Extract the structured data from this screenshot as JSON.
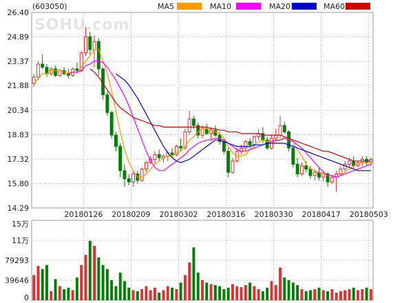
{
  "header": {
    "code": "(603050)"
  },
  "watermark": {
    "text": "SOHU.com"
  },
  "legend": [
    {
      "name": "MA5",
      "color": "#ff9900"
    },
    {
      "name": "MA10",
      "color": "#ff00ff"
    },
    {
      "name": "MA20",
      "color": "#0000cc"
    },
    {
      "name": "MA60",
      "color": "#cc0000"
    }
  ],
  "colors": {
    "up": "#e03030",
    "down": "#008000",
    "grid": "#c8c8c8"
  },
  "chart_data": [
    {
      "type": "candlestick",
      "ylim": [
        14.29,
        26.4
      ],
      "y_ticks": [
        "26.40",
        "24.89",
        "23.37",
        "21.88",
        "20.34",
        "18.83",
        "17.32",
        "15.80",
        "14.29"
      ],
      "x_ticks": [
        {
          "index": 12,
          "label": "20180126"
        },
        {
          "index": 23,
          "label": "20180209"
        },
        {
          "index": 34,
          "label": "20180302"
        },
        {
          "index": 45,
          "label": "20180316"
        },
        {
          "index": 56,
          "label": "20180330"
        },
        {
          "index": 67,
          "label": "20180417"
        },
        {
          "index": 78,
          "label": "20180503"
        }
      ],
      "ohlc": [
        [
          22.0,
          22.6,
          21.8,
          22.4
        ],
        [
          22.4,
          23.4,
          22.2,
          23.2
        ],
        [
          23.2,
          23.8,
          22.9,
          23.0
        ],
        [
          23.0,
          23.2,
          22.4,
          22.6
        ],
        [
          22.6,
          23.0,
          22.5,
          22.9
        ],
        [
          22.9,
          23.1,
          22.4,
          22.5
        ],
        [
          22.5,
          22.9,
          22.4,
          22.8
        ],
        [
          22.8,
          23.0,
          22.5,
          22.6
        ],
        [
          22.6,
          22.9,
          22.3,
          22.5
        ],
        [
          22.5,
          23.0,
          22.4,
          22.9
        ],
        [
          22.9,
          23.3,
          22.6,
          22.8
        ],
        [
          22.8,
          24.0,
          22.7,
          23.9
        ],
        [
          23.9,
          25.5,
          23.7,
          24.9
        ],
        [
          24.9,
          25.2,
          23.8,
          24.1
        ],
        [
          24.1,
          25.0,
          23.0,
          24.6
        ],
        [
          24.6,
          24.8,
          22.5,
          22.9
        ],
        [
          22.9,
          23.0,
          21.0,
          21.3
        ],
        [
          21.3,
          21.5,
          20.0,
          20.2
        ],
        [
          20.2,
          20.3,
          18.6,
          18.8
        ],
        [
          18.8,
          19.0,
          17.8,
          18.1
        ],
        [
          18.1,
          18.3,
          16.2,
          16.6
        ],
        [
          16.6,
          17.0,
          15.6,
          16.1
        ],
        [
          16.1,
          16.4,
          15.7,
          15.9
        ],
        [
          15.9,
          16.6,
          15.6,
          16.4
        ],
        [
          16.4,
          16.6,
          15.8,
          16.0
        ],
        [
          16.0,
          16.8,
          15.9,
          16.7
        ],
        [
          16.7,
          17.2,
          16.5,
          17.1
        ],
        [
          17.1,
          17.5,
          17.0,
          17.3
        ],
        [
          17.3,
          17.8,
          17.0,
          17.6
        ],
        [
          17.6,
          17.9,
          17.2,
          17.4
        ],
        [
          17.4,
          17.6,
          17.1,
          17.5
        ],
        [
          17.5,
          17.8,
          17.2,
          17.7
        ],
        [
          17.7,
          18.0,
          17.4,
          17.6
        ],
        [
          17.6,
          18.2,
          17.5,
          18.1
        ],
        [
          18.1,
          18.6,
          17.8,
          18.0
        ],
        [
          18.0,
          19.2,
          17.9,
          19.0
        ],
        [
          19.0,
          20.3,
          18.8,
          19.8
        ],
        [
          19.8,
          20.0,
          19.2,
          19.4
        ],
        [
          19.4,
          19.6,
          18.6,
          18.8
        ],
        [
          18.8,
          19.4,
          18.6,
          19.2
        ],
        [
          19.2,
          19.5,
          18.8,
          18.9
        ],
        [
          18.9,
          19.3,
          18.5,
          19.1
        ],
        [
          19.1,
          19.4,
          18.7,
          18.8
        ],
        [
          18.8,
          19.0,
          18.2,
          18.4
        ],
        [
          18.4,
          18.6,
          17.6,
          17.8
        ],
        [
          17.8,
          18.0,
          16.2,
          16.5
        ],
        [
          16.5,
          17.4,
          16.4,
          17.2
        ],
        [
          17.2,
          18.0,
          17.1,
          17.8
        ],
        [
          17.8,
          18.2,
          17.6,
          18.0
        ],
        [
          18.0,
          18.5,
          17.8,
          18.4
        ],
        [
          18.4,
          18.6,
          18.0,
          18.2
        ],
        [
          18.2,
          18.8,
          18.0,
          18.7
        ],
        [
          18.7,
          19.2,
          18.5,
          18.9
        ],
        [
          18.9,
          19.3,
          18.3,
          18.5
        ],
        [
          18.5,
          18.7,
          17.9,
          18.0
        ],
        [
          18.0,
          18.8,
          17.9,
          18.6
        ],
        [
          18.6,
          19.2,
          18.4,
          18.8
        ],
        [
          18.8,
          20.0,
          18.6,
          19.4
        ],
        [
          19.4,
          19.6,
          18.9,
          19.0
        ],
        [
          19.0,
          19.1,
          17.8,
          18.0
        ],
        [
          18.0,
          18.2,
          16.8,
          17.0
        ],
        [
          17.0,
          17.4,
          16.2,
          16.4
        ],
        [
          16.4,
          17.1,
          16.3,
          16.9
        ],
        [
          16.9,
          17.2,
          16.5,
          16.7
        ],
        [
          16.7,
          16.9,
          16.1,
          16.3
        ],
        [
          16.3,
          16.7,
          16.0,
          16.5
        ],
        [
          16.5,
          16.8,
          16.0,
          16.2
        ],
        [
          16.2,
          16.6,
          15.9,
          16.4
        ],
        [
          16.4,
          16.5,
          15.6,
          15.9
        ],
        [
          15.9,
          16.3,
          15.8,
          16.2
        ],
        [
          16.2,
          16.6,
          15.3,
          16.4
        ],
        [
          16.4,
          16.9,
          16.3,
          16.7
        ],
        [
          16.7,
          17.2,
          16.5,
          17.0
        ],
        [
          17.0,
          17.4,
          16.8,
          17.2
        ],
        [
          17.2,
          17.5,
          16.7,
          16.9
        ],
        [
          16.9,
          17.2,
          16.8,
          17.1
        ],
        [
          17.1,
          17.5,
          16.9,
          17.3
        ],
        [
          17.3,
          17.5,
          16.9,
          17.1
        ],
        [
          17.1,
          17.4,
          16.9,
          17.3
        ]
      ],
      "ma5": [
        22.0,
        22.3,
        22.6,
        22.6,
        22.8,
        22.8,
        22.8,
        22.7,
        22.7,
        22.7,
        22.7,
        23.0,
        23.4,
        23.7,
        24.1,
        24.1,
        23.4,
        22.6,
        21.5,
        20.3,
        19.0,
        17.9,
        17.1,
        16.6,
        16.2,
        16.2,
        16.4,
        16.7,
        17.0,
        17.2,
        17.4,
        17.5,
        17.5,
        17.7,
        17.8,
        18.1,
        18.5,
        18.7,
        19.0,
        19.2,
        19.2,
        19.1,
        19.0,
        18.9,
        18.6,
        18.1,
        17.7,
        17.5,
        17.5,
        17.6,
        17.9,
        18.2,
        18.4,
        18.5,
        18.4,
        18.4,
        18.4,
        18.5,
        18.7,
        18.6,
        18.4,
        17.9,
        17.5,
        17.0,
        16.7,
        16.6,
        16.5,
        16.4,
        16.3,
        16.3,
        16.2,
        16.3,
        16.5,
        16.7,
        16.9,
        17.0,
        17.1,
        17.1,
        17.1
      ],
      "ma10": [
        null,
        null,
        null,
        null,
        null,
        null,
        null,
        null,
        22.6,
        22.7,
        22.7,
        22.8,
        23.1,
        23.2,
        23.4,
        23.4,
        23.3,
        23.0,
        22.6,
        22.2,
        21.7,
        21.2,
        20.6,
        19.9,
        19.2,
        18.5,
        17.8,
        17.2,
        16.8,
        16.6,
        16.6,
        16.8,
        17.0,
        17.2,
        17.4,
        17.6,
        17.9,
        18.1,
        18.3,
        18.4,
        18.5,
        18.5,
        18.6,
        18.6,
        18.5,
        18.3,
        18.1,
        17.9,
        17.8,
        17.8,
        17.9,
        18.0,
        18.1,
        18.2,
        18.3,
        18.4,
        18.5,
        18.5,
        18.6,
        18.5,
        18.4,
        18.2,
        18.0,
        17.7,
        17.4,
        17.1,
        16.8,
        16.5,
        16.3,
        16.3,
        16.2,
        16.3,
        16.4,
        16.5,
        16.6,
        16.7,
        16.8,
        16.9,
        17.0
      ],
      "ma20": [
        null,
        null,
        null,
        null,
        null,
        null,
        null,
        null,
        null,
        null,
        null,
        null,
        null,
        null,
        null,
        null,
        null,
        null,
        null,
        22.6,
        22.4,
        22.2,
        21.9,
        21.5,
        21.1,
        20.6,
        20.1,
        19.6,
        19.1,
        18.6,
        18.1,
        17.7,
        17.4,
        17.2,
        17.1,
        17.2,
        17.3,
        17.5,
        17.7,
        17.9,
        18.1,
        18.3,
        18.5,
        18.5,
        18.4,
        18.3,
        18.2,
        18.1,
        18.1,
        18.1,
        18.1,
        18.2,
        18.2,
        18.2,
        18.3,
        18.3,
        18.3,
        18.3,
        18.3,
        18.2,
        18.1,
        18.0,
        17.9,
        17.8,
        17.7,
        17.6,
        17.5,
        17.4,
        17.3,
        17.2,
        17.1,
        17.0,
        16.9,
        16.8,
        16.7,
        16.6,
        16.6,
        16.6,
        16.6
      ],
      "ma60": [
        null,
        null,
        null,
        null,
        null,
        null,
        null,
        null,
        null,
        null,
        null,
        null,
        null,
        22.9,
        22.7,
        22.4,
        22.0,
        21.6,
        21.2,
        20.8,
        20.5,
        20.3,
        20.1,
        19.9,
        19.8,
        19.7,
        19.6,
        19.5,
        19.4,
        19.4,
        19.3,
        19.3,
        19.3,
        19.3,
        19.3,
        19.3,
        19.3,
        19.3,
        19.3,
        19.3,
        19.3,
        19.2,
        19.2,
        19.1,
        19.1,
        19.0,
        19.0,
        19.0,
        18.9,
        18.9,
        18.9,
        18.9,
        18.9,
        18.8,
        18.8,
        18.8,
        18.8,
        18.8,
        18.7,
        18.6,
        18.5,
        18.4,
        18.3,
        18.2,
        18.1,
        18.0,
        17.9,
        17.8,
        17.8,
        17.7,
        17.6,
        17.5,
        17.4,
        17.3,
        17.2,
        17.2,
        17.2,
        17.2,
        17.2
      ]
    },
    {
      "type": "bar",
      "ylim": [
        0,
        158586
      ],
      "y_ticks": [
        {
          "value": 158586,
          "label": "15万"
        },
        {
          "value": 118940,
          "label": "11万"
        },
        {
          "value": 79293,
          "label": "79293"
        },
        {
          "value": 39646,
          "label": "39646"
        },
        {
          "value": 0,
          "label": "0"
        }
      ],
      "volume": [
        50000,
        68000,
        62000,
        70000,
        18000,
        42000,
        28000,
        22000,
        25000,
        20000,
        45000,
        70000,
        90000,
        118000,
        108000,
        85000,
        70000,
        62000,
        40000,
        28000,
        55000,
        38000,
        25000,
        20000,
        18000,
        22000,
        28000,
        20000,
        25000,
        15000,
        20000,
        28000,
        25000,
        22000,
        35000,
        50000,
        75000,
        105000,
        55000,
        40000,
        35000,
        32000,
        30000,
        28000,
        22000,
        25000,
        32000,
        28000,
        26000,
        30000,
        35000,
        28000,
        22000,
        18000,
        25000,
        38000,
        30000,
        65000,
        45000,
        40000,
        35000,
        30000,
        22000,
        18000,
        20000,
        22000,
        25000,
        20000,
        18000,
        22000,
        15000,
        18000,
        20000,
        22000,
        25000,
        20000,
        22000,
        25000,
        22000
      ]
    }
  ]
}
